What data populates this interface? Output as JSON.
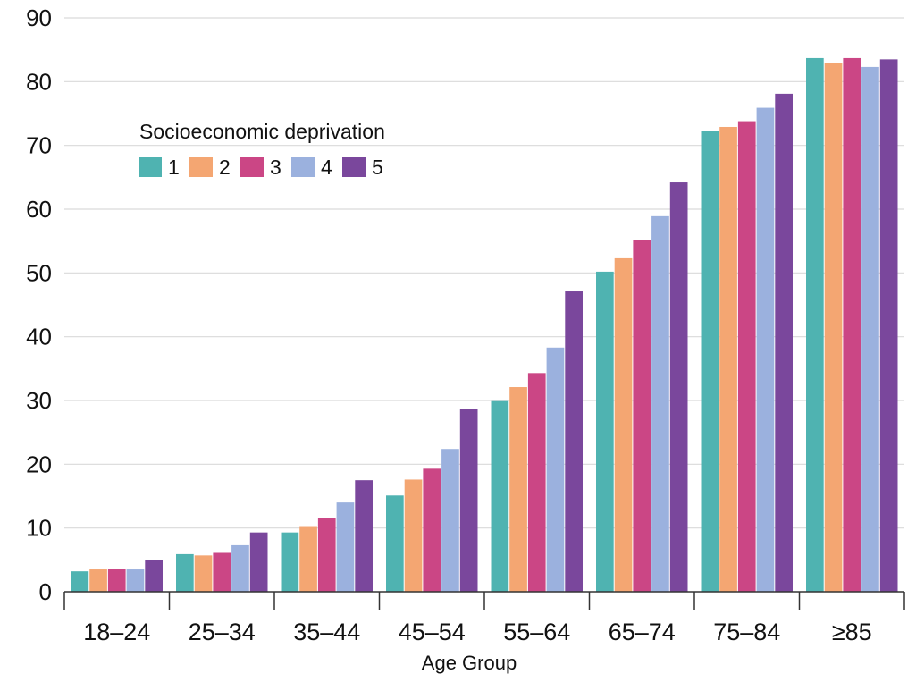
{
  "chart_data": {
    "type": "bar",
    "xlabel": "Age Group",
    "ylabel": "",
    "ylim": [
      0,
      90
    ],
    "yticks": [
      0,
      10,
      20,
      30,
      40,
      50,
      60,
      70,
      80,
      90
    ],
    "grid": "horizontal",
    "legend": {
      "title": "Socioeconomic deprivation",
      "placement": "top-left",
      "orientation": "horizontal"
    },
    "categories": [
      "18–24",
      "25–34",
      "35–44",
      "45–54",
      "55–64",
      "65–74",
      "75–84",
      "≥85"
    ],
    "series": [
      {
        "name": "1",
        "color": "#4FB3B1",
        "values": [
          3.2,
          5.9,
          9.3,
          15.1,
          29.9,
          50.2,
          72.3,
          83.7
        ]
      },
      {
        "name": "2",
        "color": "#F4A672",
        "values": [
          3.5,
          5.7,
          10.3,
          17.6,
          32.1,
          52.3,
          72.9,
          82.9
        ]
      },
      {
        "name": "3",
        "color": "#CB4685",
        "values": [
          3.6,
          6.1,
          11.5,
          19.3,
          34.3,
          55.2,
          73.8,
          83.7
        ]
      },
      {
        "name": "4",
        "color": "#9BB1DE",
        "values": [
          3.5,
          7.3,
          14.0,
          22.4,
          38.3,
          58.9,
          75.9,
          82.3
        ]
      },
      {
        "name": "5",
        "color": "#7A479C",
        "values": [
          5.0,
          9.3,
          17.5,
          28.7,
          47.1,
          64.2,
          78.1,
          83.5
        ]
      }
    ]
  }
}
